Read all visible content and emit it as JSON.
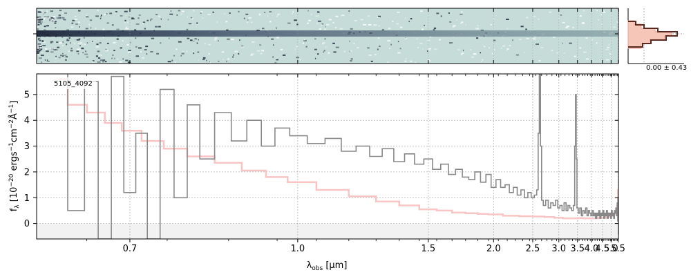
{
  "chart_data": {
    "type": "line",
    "annotation": "5105_4092",
    "xlabel_main": "λ",
    "xlabel_sub": "obs",
    "xlabel_unit": " [μm]",
    "ylabel": "f_λ [10^-20 ergs^-1 cm^-2 Å^-1]",
    "x_scale": "reciprocal",
    "xlim": [
      0.6,
      5.52
    ],
    "ylim": [
      -0.6,
      5.8
    ],
    "grid": true,
    "x_ticks": [
      {
        "value": 0.7,
        "label": "0.7"
      },
      {
        "value": 1.0,
        "label": "1.0"
      },
      {
        "value": 1.5,
        "label": "1.5"
      },
      {
        "value": 2.0,
        "label": "2.0"
      },
      {
        "value": 2.5,
        "label": "2.5"
      },
      {
        "value": 3.0,
        "label": "3.0"
      },
      {
        "value": 3.5,
        "label": "3.5"
      },
      {
        "value": 4.0,
        "label": "4.0"
      },
      {
        "value": 4.5,
        "label": "4.5"
      },
      {
        "value": 5.0,
        "label": "5.0"
      },
      {
        "value": 5.5,
        "label": "5.5"
      }
    ],
    "y_ticks": [
      {
        "value": 0,
        "label": "0"
      },
      {
        "value": 1,
        "label": "1"
      },
      {
        "value": 2,
        "label": "2"
      },
      {
        "value": 3,
        "label": "3"
      },
      {
        "value": 4,
        "label": "4"
      },
      {
        "value": 5,
        "label": "5"
      }
    ],
    "spectrum": {
      "color": "#888888",
      "points": [
        [
          0.62,
          6.0
        ],
        [
          0.64,
          0.5
        ],
        [
          0.655,
          5.5
        ],
        [
          0.67,
          -0.6
        ],
        [
          0.685,
          5.7
        ],
        [
          0.7,
          1.2
        ],
        [
          0.715,
          3.5
        ],
        [
          0.73,
          -0.6
        ],
        [
          0.75,
          5.2
        ],
        [
          0.77,
          1.0
        ],
        [
          0.79,
          4.6
        ],
        [
          0.81,
          2.5
        ],
        [
          0.84,
          4.3
        ],
        [
          0.87,
          3.2
        ],
        [
          0.9,
          4.0
        ],
        [
          0.93,
          3.0
        ],
        [
          0.96,
          3.7
        ],
        [
          1.0,
          3.4
        ],
        [
          1.05,
          3.1
        ],
        [
          1.1,
          3.3
        ],
        [
          1.15,
          2.8
        ],
        [
          1.2,
          3.0
        ],
        [
          1.25,
          2.6
        ],
        [
          1.3,
          2.9
        ],
        [
          1.35,
          2.4
        ],
        [
          1.4,
          2.7
        ],
        [
          1.45,
          2.3
        ],
        [
          1.5,
          2.5
        ],
        [
          1.55,
          2.1
        ],
        [
          1.6,
          2.3
        ],
        [
          1.65,
          1.9
        ],
        [
          1.7,
          2.1
        ],
        [
          1.75,
          1.8
        ],
        [
          1.8,
          1.7
        ],
        [
          1.85,
          2.0
        ],
        [
          1.9,
          1.6
        ],
        [
          1.95,
          1.9
        ],
        [
          2.0,
          1.4
        ],
        [
          2.05,
          1.7
        ],
        [
          2.1,
          1.4
        ],
        [
          2.15,
          1.5
        ],
        [
          2.2,
          1.2
        ],
        [
          2.25,
          1.4
        ],
        [
          2.3,
          1.1
        ],
        [
          2.35,
          1.3
        ],
        [
          2.4,
          1.0
        ],
        [
          2.45,
          1.2
        ],
        [
          2.5,
          1.0
        ],
        [
          2.55,
          1.1
        ],
        [
          2.58,
          1.3
        ],
        [
          2.6,
          3.5
        ],
        [
          2.62,
          5.9
        ],
        [
          2.64,
          3.0
        ],
        [
          2.66,
          0.9
        ],
        [
          2.7,
          0.7
        ],
        [
          2.75,
          0.9
        ],
        [
          2.8,
          0.6
        ],
        [
          2.85,
          0.8
        ],
        [
          2.9,
          0.7
        ],
        [
          2.95,
          0.9
        ],
        [
          3.0,
          0.6
        ],
        [
          3.05,
          0.7
        ],
        [
          3.1,
          0.5
        ],
        [
          3.15,
          0.8
        ],
        [
          3.2,
          0.5
        ],
        [
          3.25,
          0.7
        ],
        [
          3.3,
          0.6
        ],
        [
          3.35,
          0.5
        ],
        [
          3.4,
          0.7
        ],
        [
          3.43,
          3.0
        ],
        [
          3.45,
          5.0
        ],
        [
          3.47,
          2.5
        ],
        [
          3.5,
          0.6
        ],
        [
          3.55,
          0.4
        ],
        [
          3.6,
          0.6
        ],
        [
          3.65,
          0.3
        ],
        [
          3.7,
          0.5
        ],
        [
          3.75,
          0.4
        ],
        [
          3.8,
          0.6
        ],
        [
          3.85,
          0.3
        ],
        [
          3.9,
          0.5
        ],
        [
          3.95,
          0.4
        ],
        [
          4.0,
          0.3
        ],
        [
          4.05,
          0.5
        ],
        [
          4.1,
          0.3
        ],
        [
          4.15,
          0.4
        ],
        [
          4.2,
          0.2
        ],
        [
          4.25,
          0.4
        ],
        [
          4.3,
          0.3
        ],
        [
          4.35,
          0.5
        ],
        [
          4.4,
          0.2
        ],
        [
          4.45,
          0.4
        ],
        [
          4.5,
          0.3
        ],
        [
          4.55,
          0.5
        ],
        [
          4.6,
          0.2
        ],
        [
          4.65,
          0.4
        ],
        [
          4.7,
          0.3
        ],
        [
          4.75,
          0.5
        ],
        [
          4.8,
          0.2
        ],
        [
          4.85,
          0.4
        ],
        [
          4.9,
          0.3
        ],
        [
          4.95,
          0.4
        ],
        [
          5.0,
          0.2
        ],
        [
          5.05,
          0.5
        ],
        [
          5.1,
          0.3
        ],
        [
          5.15,
          0.4
        ],
        [
          5.2,
          0.2
        ],
        [
          5.25,
          0.5
        ],
        [
          5.3,
          0.4
        ],
        [
          5.35,
          0.6
        ],
        [
          5.4,
          0.3
        ],
        [
          5.45,
          0.8
        ],
        [
          5.48,
          0.1
        ],
        [
          5.5,
          1.0
        ],
        [
          5.52,
          -0.4
        ]
      ]
    },
    "model": {
      "color": "#f8c4c4",
      "points": [
        [
          0.62,
          5.6
        ],
        [
          0.64,
          4.6
        ],
        [
          0.66,
          4.3
        ],
        [
          0.68,
          3.9
        ],
        [
          0.7,
          3.6
        ],
        [
          0.73,
          3.2
        ],
        [
          0.76,
          2.9
        ],
        [
          0.8,
          2.6
        ],
        [
          0.85,
          2.35
        ],
        [
          0.9,
          2.05
        ],
        [
          0.95,
          1.8
        ],
        [
          1.0,
          1.6
        ],
        [
          1.1,
          1.3
        ],
        [
          1.2,
          1.05
        ],
        [
          1.3,
          0.85
        ],
        [
          1.4,
          0.7
        ],
        [
          1.5,
          0.55
        ],
        [
          1.6,
          0.5
        ],
        [
          1.7,
          0.42
        ],
        [
          1.8,
          0.4
        ],
        [
          1.9,
          0.37
        ],
        [
          2.0,
          0.35
        ],
        [
          2.2,
          0.3
        ],
        [
          2.4,
          0.28
        ],
        [
          2.6,
          0.27
        ],
        [
          2.8,
          0.25
        ],
        [
          3.0,
          0.22
        ],
        [
          3.2,
          0.2
        ],
        [
          3.4,
          0.2
        ],
        [
          3.6,
          0.21
        ],
        [
          3.8,
          0.2
        ],
        [
          4.0,
          0.2
        ],
        [
          4.2,
          0.2
        ],
        [
          4.4,
          0.22
        ],
        [
          4.6,
          0.22
        ],
        [
          4.8,
          0.25
        ],
        [
          5.0,
          0.3
        ],
        [
          5.2,
          0.35
        ],
        [
          5.3,
          0.4
        ],
        [
          5.4,
          0.55
        ],
        [
          5.45,
          0.7
        ],
        [
          5.5,
          1.3
        ]
      ]
    },
    "spectrum_2d": {
      "background": "#c5dcd8",
      "trace_color": "#2f3e57"
    },
    "profile": {
      "label": "0.00 ± 0.43",
      "line_color": "#5a2a20",
      "fill_color": "#f6c6b8"
    }
  }
}
